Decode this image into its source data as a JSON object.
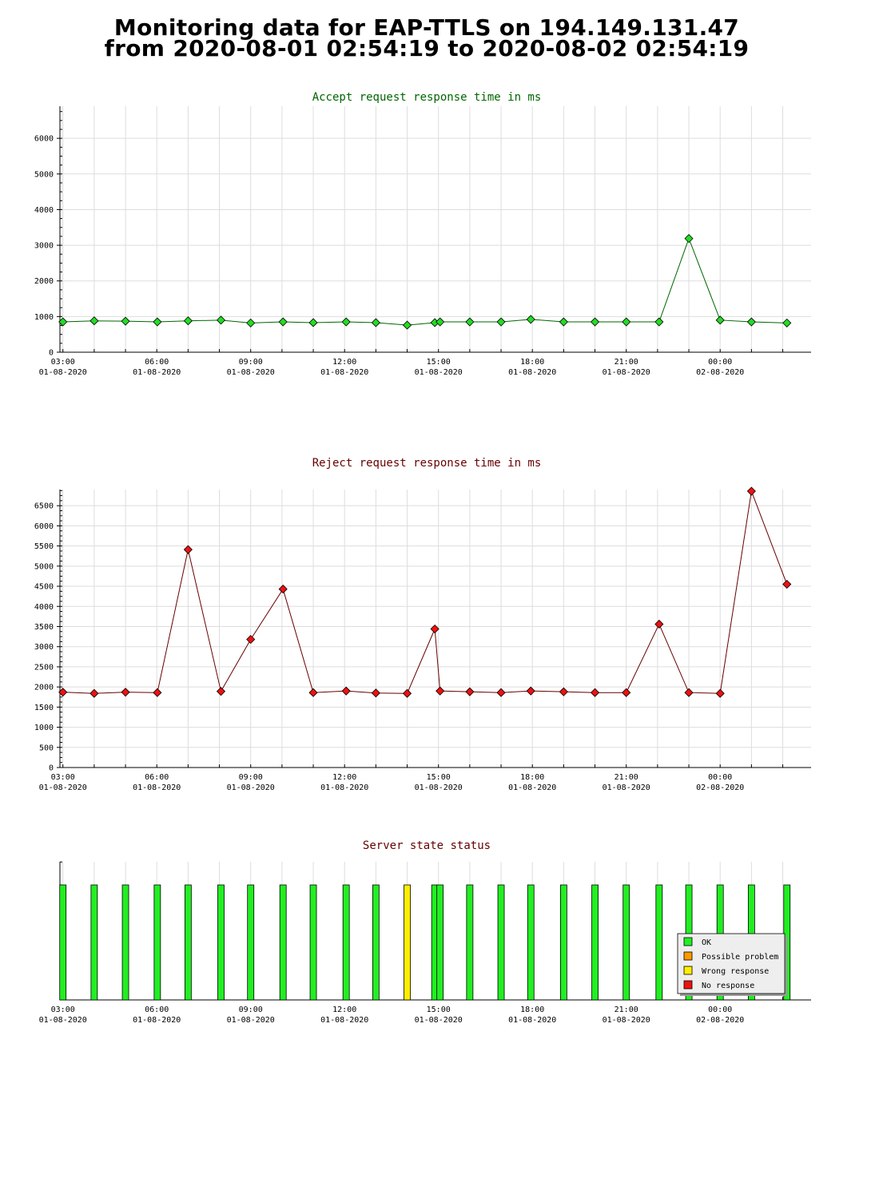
{
  "title": {
    "line1": "Monitoring data for EAP-TTLS on 194.149.131.47",
    "line2": "from 2020-08-01 02:54:19 to 2020-08-02 02:54:19"
  },
  "x_ticks": [
    {
      "time": "03:00",
      "date": "01-08-2020",
      "h": 3
    },
    {
      "time": "06:00",
      "date": "01-08-2020",
      "h": 6
    },
    {
      "time": "09:00",
      "date": "01-08-2020",
      "h": 9
    },
    {
      "time": "12:00",
      "date": "01-08-2020",
      "h": 12
    },
    {
      "time": "15:00",
      "date": "01-08-2020",
      "h": 15
    },
    {
      "time": "18:00",
      "date": "01-08-2020",
      "h": 18
    },
    {
      "time": "21:00",
      "date": "01-08-2020",
      "h": 21
    },
    {
      "time": "00:00",
      "date": "02-08-2020",
      "h": 24
    }
  ],
  "chart_data": [
    {
      "id": "accept",
      "type": "line",
      "title": "Accept request response time in ms",
      "title_color": "#006600",
      "line_color": "#006600",
      "marker_color": "#22dd22",
      "grid": true,
      "ylim": [
        0,
        6900
      ],
      "y_ticks": [
        0,
        1000,
        2000,
        3000,
        4000,
        5000,
        6000
      ],
      "x": [
        "2020-08-01 03:00",
        "2020-08-01 04:00",
        "2020-08-01 05:00",
        "2020-08-01 06:01",
        "2020-08-01 07:00",
        "2020-08-01 08:03",
        "2020-08-01 09:00",
        "2020-08-01 10:02",
        "2020-08-01 11:00",
        "2020-08-01 12:03",
        "2020-08-01 13:00",
        "2020-08-01 14:00",
        "2020-08-01 14:53",
        "2020-08-01 15:03",
        "2020-08-01 16:00",
        "2020-08-01 17:00",
        "2020-08-01 17:57",
        "2020-08-01 19:00",
        "2020-08-01 20:00",
        "2020-08-01 21:00",
        "2020-08-01 22:03",
        "2020-08-01 23:00",
        "2020-08-02 00:00",
        "2020-08-02 01:00",
        "2020-08-02 02:08"
      ],
      "values": [
        850,
        880,
        870,
        850,
        880,
        900,
        820,
        850,
        830,
        850,
        830,
        760,
        830,
        850,
        850,
        850,
        920,
        850,
        850,
        850,
        850,
        3190,
        900,
        850,
        820
      ]
    },
    {
      "id": "reject",
      "type": "line",
      "title": "Reject request response time in ms",
      "title_color": "#660000",
      "line_color": "#660000",
      "marker_color": "#ee1111",
      "grid": true,
      "ylim": [
        0,
        6900
      ],
      "y_ticks": [
        0,
        500,
        1000,
        1500,
        2000,
        2500,
        3000,
        3500,
        4000,
        4500,
        5000,
        5500,
        6000,
        6500
      ],
      "x": [
        "2020-08-01 03:00",
        "2020-08-01 04:00",
        "2020-08-01 05:00",
        "2020-08-01 06:01",
        "2020-08-01 07:00",
        "2020-08-01 08:03",
        "2020-08-01 09:00",
        "2020-08-01 10:02",
        "2020-08-01 11:00",
        "2020-08-01 12:03",
        "2020-08-01 13:00",
        "2020-08-01 14:00",
        "2020-08-01 14:53",
        "2020-08-01 15:03",
        "2020-08-01 16:00",
        "2020-08-01 17:00",
        "2020-08-01 17:57",
        "2020-08-01 19:00",
        "2020-08-01 20:00",
        "2020-08-01 21:00",
        "2020-08-01 22:03",
        "2020-08-01 23:00",
        "2020-08-02 00:00",
        "2020-08-02 01:00",
        "2020-08-02 02:08"
      ],
      "values": [
        1870,
        1840,
        1870,
        1860,
        5410,
        1890,
        3180,
        4430,
        1860,
        1900,
        1850,
        1840,
        3440,
        1900,
        1880,
        1860,
        1900,
        1880,
        1860,
        1860,
        3560,
        1860,
        1840,
        6860,
        4550
      ]
    },
    {
      "id": "state",
      "type": "bar",
      "title": "Server state status",
      "title_color": "#660000",
      "x": [
        "2020-08-01 03:00",
        "2020-08-01 04:00",
        "2020-08-01 05:00",
        "2020-08-01 06:01",
        "2020-08-01 07:00",
        "2020-08-01 08:03",
        "2020-08-01 09:00",
        "2020-08-01 10:02",
        "2020-08-01 11:00",
        "2020-08-01 12:03",
        "2020-08-01 13:00",
        "2020-08-01 14:00",
        "2020-08-01 14:53",
        "2020-08-01 15:03",
        "2020-08-01 16:00",
        "2020-08-01 17:00",
        "2020-08-01 17:57",
        "2020-08-01 19:00",
        "2020-08-01 20:00",
        "2020-08-01 21:00",
        "2020-08-01 22:03",
        "2020-08-01 23:00",
        "2020-08-02 00:00",
        "2020-08-02 01:00",
        "2020-08-02 02:08"
      ],
      "status": [
        "OK",
        "OK",
        "OK",
        "OK",
        "OK",
        "OK",
        "OK",
        "OK",
        "OK",
        "OK",
        "OK",
        "Wrong response",
        "OK",
        "OK",
        "OK",
        "OK",
        "OK",
        "OK",
        "OK",
        "OK",
        "OK",
        "OK",
        "OK",
        "OK",
        "OK"
      ],
      "legend_position": "bottom-right",
      "legend": [
        {
          "label": "OK",
          "color": "#22ee22"
        },
        {
          "label": "Possible problem",
          "color": "#ff9900"
        },
        {
          "label": "Wrong response",
          "color": "#ffee00"
        },
        {
          "label": "No response",
          "color": "#ee1111"
        }
      ]
    }
  ]
}
